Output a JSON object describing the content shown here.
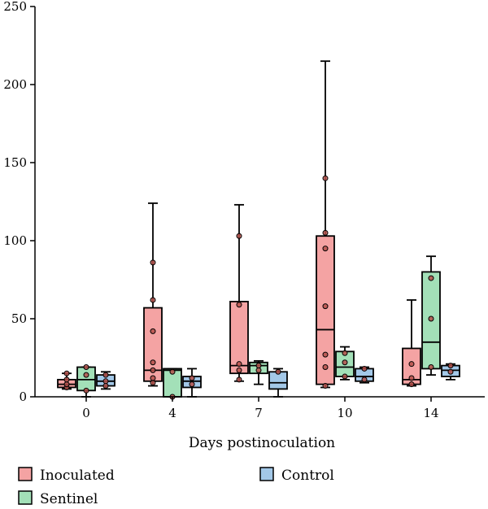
{
  "chart_data": {
    "type": "box",
    "title": "",
    "xlabel": "Days postinoculation",
    "ylabel": "",
    "ylim": [
      0,
      250
    ],
    "yticks": [
      0,
      50,
      100,
      150,
      200,
      250
    ],
    "categories": [
      "0",
      "4",
      "7",
      "10",
      "14"
    ],
    "grid": false,
    "legend_position": "bottom",
    "series": [
      {
        "name": "Inoculated",
        "color": "#f4a3a3",
        "boxes": [
          {
            "whisker_low": 5,
            "q1": 6,
            "median": 8,
            "q3": 11,
            "whisker_high": 15,
            "points": [
              6,
              8,
              11,
              15
            ]
          },
          {
            "whisker_low": 7,
            "q1": 10,
            "median": 17,
            "q3": 57,
            "whisker_high": 124,
            "points": [
              9,
              12,
              17,
              22,
              42,
              62,
              86
            ]
          },
          {
            "whisker_low": 10,
            "q1": 15,
            "median": 20,
            "q3": 61,
            "whisker_high": 123,
            "points": [
              11,
              17,
              21,
              59,
              103
            ]
          },
          {
            "whisker_low": 6,
            "q1": 8,
            "median": 43,
            "q3": 103,
            "whisker_high": 215,
            "points": [
              7,
              19,
              27,
              58,
              95,
              105,
              140
            ]
          },
          {
            "whisker_low": 7,
            "q1": 8,
            "median": 11,
            "q3": 31,
            "whisker_high": 62,
            "points": [
              8,
              12,
              21
            ]
          }
        ]
      },
      {
        "name": "Sentinel",
        "color": "#a3e0b8",
        "boxes": [
          {
            "whisker_low": 0,
            "q1": 4,
            "median": 11,
            "q3": 19,
            "whisker_high": 19,
            "points": [
              4,
              14,
              19
            ]
          },
          {
            "whisker_low": 0,
            "q1": 0,
            "median": 17,
            "q3": 18,
            "whisker_high": 18,
            "points": [
              0,
              16
            ]
          },
          {
            "whisker_low": 8,
            "q1": 15,
            "median": 20,
            "q3": 22,
            "whisker_high": 23,
            "points": [
              17,
              20
            ]
          },
          {
            "whisker_low": 11,
            "q1": 13,
            "median": 19,
            "q3": 29,
            "whisker_high": 32,
            "points": [
              13,
              22,
              28
            ]
          },
          {
            "whisker_low": 14,
            "q1": 18,
            "median": 35,
            "q3": 80,
            "whisker_high": 90,
            "points": [
              19,
              50,
              76
            ]
          }
        ]
      },
      {
        "name": "Control",
        "color": "#a3c8e8",
        "boxes": [
          {
            "whisker_low": 5,
            "q1": 7,
            "median": 10,
            "q3": 14,
            "whisker_high": 16,
            "points": [
              7,
              10,
              14
            ]
          },
          {
            "whisker_low": 0,
            "q1": 6,
            "median": 10,
            "q3": 13,
            "whisker_high": 18,
            "points": [
              8,
              12
            ]
          },
          {
            "whisker_low": 0,
            "q1": 5,
            "median": 9,
            "q3": 16,
            "whisker_high": 18,
            "points": [
              16
            ]
          },
          {
            "whisker_low": 9,
            "q1": 10,
            "median": 13,
            "q3": 18,
            "whisker_high": 19,
            "points": [
              11,
              18
            ]
          },
          {
            "whisker_low": 11,
            "q1": 13,
            "median": 17,
            "q3": 20,
            "whisker_high": 21,
            "points": [
              16,
              20
            ]
          }
        ]
      }
    ],
    "legend": [
      {
        "label": "Inoculated",
        "color": "#f4a3a3"
      },
      {
        "label": "Sentinel",
        "color": "#a3e0b8"
      },
      {
        "label": "Control",
        "color": "#a3c8e8"
      }
    ],
    "point_color": "#b4504a"
  }
}
